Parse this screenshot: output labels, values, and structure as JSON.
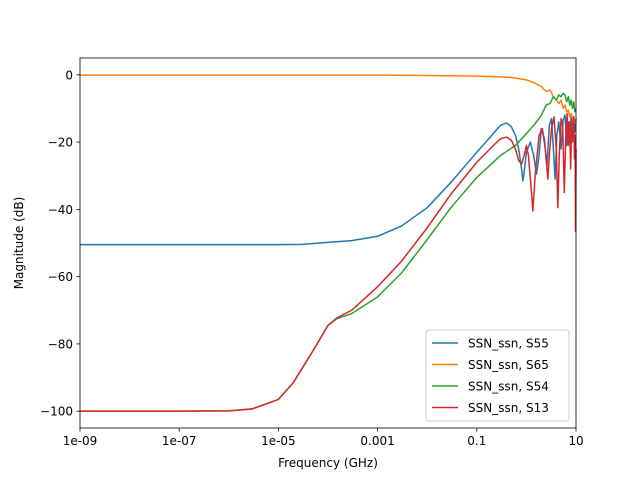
{
  "chart_data": {
    "type": "line",
    "title": "",
    "xlabel": "Frequency (GHz)",
    "ylabel": "Magnitude (dB)",
    "x_scale": "log",
    "xlim": [
      1e-09,
      10
    ],
    "ylim": [
      -105,
      5
    ],
    "x_ticks": [
      {
        "value": 1e-09,
        "label": "1e-09"
      },
      {
        "value": 1e-07,
        "label": "1e-07"
      },
      {
        "value": 1e-05,
        "label": "1e-05"
      },
      {
        "value": 0.001,
        "label": "0.001"
      },
      {
        "value": 0.1,
        "label": "0.1"
      },
      {
        "value": 10,
        "label": "10"
      }
    ],
    "y_ticks": [
      {
        "value": 0,
        "label": "0"
      },
      {
        "value": -20,
        "label": "−20"
      },
      {
        "value": -40,
        "label": "−40"
      },
      {
        "value": -60,
        "label": "−60"
      },
      {
        "value": -80,
        "label": "−80"
      },
      {
        "value": -100,
        "label": "−100"
      }
    ],
    "grid": false,
    "legend_position": "lower right",
    "series": [
      {
        "name": "SSN_ssn, S55",
        "color": "#1f77b4",
        "points": [
          [
            1e-09,
            -50.5
          ],
          [
            1e-07,
            -50.5
          ],
          [
            1e-05,
            -50.5
          ],
          [
            3e-05,
            -50.4
          ],
          [
            0.0001,
            -49.8
          ],
          [
            0.0003,
            -49.3
          ],
          [
            0.001,
            -48.0
          ],
          [
            0.003,
            -45.0
          ],
          [
            0.01,
            -39.5
          ],
          [
            0.03,
            -32.0
          ],
          [
            0.1,
            -23.0
          ],
          [
            0.2,
            -18.0
          ],
          [
            0.3,
            -15.0
          ],
          [
            0.4,
            -14.3
          ],
          [
            0.5,
            -15.5
          ],
          [
            0.6,
            -18.0
          ],
          [
            0.7,
            -22.0
          ],
          [
            0.8,
            -28.0
          ],
          [
            0.85,
            -31.5
          ],
          [
            0.9,
            -29.0
          ],
          [
            1.0,
            -23.0
          ],
          [
            1.2,
            -20.0
          ],
          [
            1.4,
            -24.0
          ],
          [
            1.6,
            -29.5
          ],
          [
            1.8,
            -24.0
          ],
          [
            2.0,
            -16.0
          ],
          [
            2.3,
            -19.0
          ],
          [
            2.6,
            -27.0
          ],
          [
            2.9,
            -15.0
          ],
          [
            3.2,
            -13.0
          ],
          [
            3.5,
            -22.0
          ],
          [
            3.8,
            -31.0
          ],
          [
            4.1,
            -18.0
          ],
          [
            4.5,
            -14.0
          ],
          [
            5.0,
            -22.0
          ],
          [
            5.5,
            -13.5
          ],
          [
            6.0,
            -12.0
          ],
          [
            6.5,
            -21.0
          ],
          [
            7.0,
            -14.0
          ],
          [
            7.5,
            -18.0
          ],
          [
            8.0,
            -12.5
          ],
          [
            8.5,
            -20.0
          ],
          [
            9.0,
            -14.0
          ],
          [
            9.5,
            -17.0
          ],
          [
            10,
            -13.0
          ]
        ]
      },
      {
        "name": "SSN_ssn, S65",
        "color": "#ff7f0e",
        "points": [
          [
            1e-09,
            -0.1
          ],
          [
            1e-05,
            -0.1
          ],
          [
            0.001,
            -0.1
          ],
          [
            0.01,
            -0.2
          ],
          [
            0.1,
            -0.4
          ],
          [
            0.3,
            -0.6
          ],
          [
            0.5,
            -0.8
          ],
          [
            1.0,
            -1.5
          ],
          [
            1.5,
            -2.5
          ],
          [
            2.0,
            -3.5
          ],
          [
            2.5,
            -5.0
          ],
          [
            3.0,
            -4.5
          ],
          [
            3.5,
            -6.5
          ],
          [
            4.0,
            -7.5
          ],
          [
            4.5,
            -8.5
          ],
          [
            5.0,
            -7.5
          ],
          [
            5.5,
            -10.0
          ],
          [
            6.0,
            -9.0
          ],
          [
            6.5,
            -11.0
          ],
          [
            7.0,
            -10.5
          ],
          [
            7.5,
            -12.5
          ],
          [
            8.0,
            -11.5
          ],
          [
            8.5,
            -13.0
          ],
          [
            9.0,
            -12.5
          ],
          [
            9.5,
            -14.0
          ],
          [
            10,
            -14.5
          ]
        ]
      },
      {
        "name": "SSN_ssn, S54",
        "color": "#2ca02c",
        "points": [
          [
            1e-09,
            -100
          ],
          [
            1e-07,
            -100
          ],
          [
            1e-06,
            -99.9
          ],
          [
            3e-06,
            -99.3
          ],
          [
            1e-05,
            -96.5
          ],
          [
            2e-05,
            -91.5
          ],
          [
            5e-05,
            -82.0
          ],
          [
            0.0001,
            -74.5
          ],
          [
            0.00015,
            -72.5
          ],
          [
            0.0003,
            -71.0
          ],
          [
            0.001,
            -66.0
          ],
          [
            0.003,
            -59.0
          ],
          [
            0.01,
            -49.0
          ],
          [
            0.03,
            -39.5
          ],
          [
            0.1,
            -30.5
          ],
          [
            0.3,
            -24.0
          ],
          [
            0.6,
            -21.0
          ],
          [
            1.0,
            -17.5
          ],
          [
            1.5,
            -14.5
          ],
          [
            2.0,
            -12.0
          ],
          [
            2.5,
            -9.0
          ],
          [
            3.0,
            -8.5
          ],
          [
            3.5,
            -6.5
          ],
          [
            4.0,
            -7.5
          ],
          [
            4.5,
            -6.0
          ],
          [
            5.0,
            -6.5
          ],
          [
            5.5,
            -5.5
          ],
          [
            6.0,
            -6.0
          ],
          [
            6.5,
            -8.0
          ],
          [
            7.0,
            -6.5
          ],
          [
            7.5,
            -9.0
          ],
          [
            8.0,
            -7.5
          ],
          [
            8.5,
            -10.0
          ],
          [
            9.0,
            -8.0
          ],
          [
            9.5,
            -11.0
          ],
          [
            10,
            -10.0
          ]
        ]
      },
      {
        "name": "SSN_ssn, S13",
        "color": "#d62728",
        "points": [
          [
            1e-09,
            -100
          ],
          [
            1e-07,
            -100
          ],
          [
            1e-06,
            -99.9
          ],
          [
            3e-06,
            -99.3
          ],
          [
            1e-05,
            -96.5
          ],
          [
            2e-05,
            -91.5
          ],
          [
            5e-05,
            -82.0
          ],
          [
            0.0001,
            -74.5
          ],
          [
            0.00015,
            -72.3
          ],
          [
            0.0003,
            -70.0
          ],
          [
            0.001,
            -63.0
          ],
          [
            0.003,
            -55.5
          ],
          [
            0.01,
            -45.5
          ],
          [
            0.03,
            -35.5
          ],
          [
            0.1,
            -26.0
          ],
          [
            0.2,
            -21.5
          ],
          [
            0.3,
            -19.0
          ],
          [
            0.4,
            -18.5
          ],
          [
            0.5,
            -19.5
          ],
          [
            0.6,
            -22.0
          ],
          [
            0.7,
            -25.5
          ],
          [
            0.8,
            -26.5
          ],
          [
            0.9,
            -24.0
          ],
          [
            1.0,
            -21.0
          ],
          [
            1.1,
            -24.0
          ],
          [
            1.3,
            -37.0
          ],
          [
            1.35,
            -40.5
          ],
          [
            1.5,
            -30.0
          ],
          [
            1.8,
            -18.0
          ],
          [
            2.1,
            -16.0
          ],
          [
            2.4,
            -22.0
          ],
          [
            2.7,
            -31.0
          ],
          [
            2.9,
            -24.0
          ],
          [
            3.2,
            -16.0
          ],
          [
            3.6,
            -12.5
          ],
          [
            4.0,
            -22.0
          ],
          [
            4.3,
            -39.5
          ],
          [
            4.6,
            -24.0
          ],
          [
            5.0,
            -13.0
          ],
          [
            5.4,
            -15.5
          ],
          [
            5.8,
            -35.0
          ],
          [
            6.2,
            -19.0
          ],
          [
            6.6,
            -11.5
          ],
          [
            7.0,
            -21.0
          ],
          [
            7.4,
            -14.0
          ],
          [
            7.8,
            -28.0
          ],
          [
            8.2,
            -13.0
          ],
          [
            8.6,
            -19.0
          ],
          [
            9.0,
            -12.5
          ],
          [
            9.3,
            -25.0
          ],
          [
            9.6,
            -18.0
          ],
          [
            9.8,
            -46.5
          ],
          [
            10,
            -22.0
          ]
        ]
      }
    ]
  }
}
